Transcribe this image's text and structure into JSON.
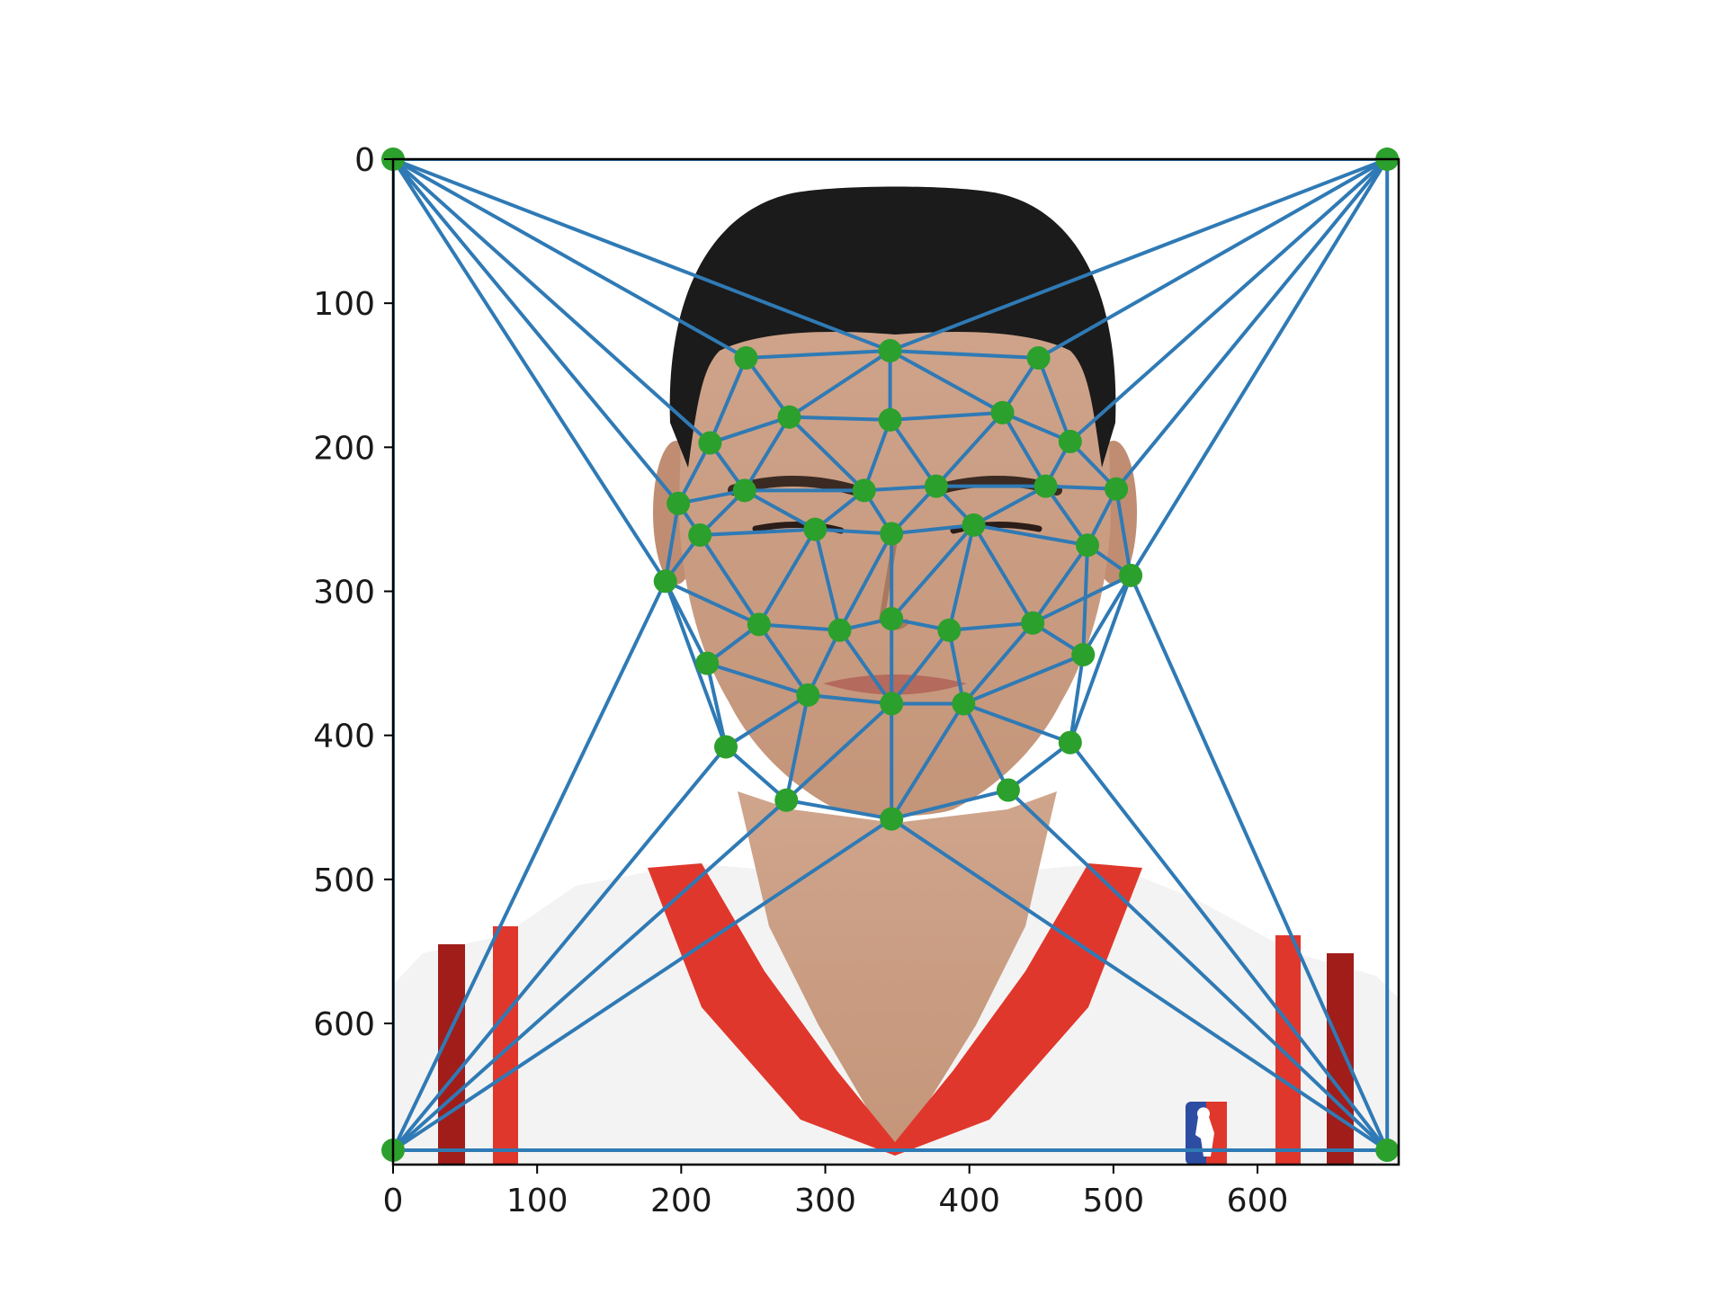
{
  "chart_data": {
    "type": "scatter",
    "subtype": "delaunay-triangulation-over-image",
    "title": "",
    "xlabel": "",
    "ylabel": "",
    "xlim": [
      0,
      698
    ],
    "ylim": [
      698,
      0
    ],
    "y_inverted": true,
    "grid": false,
    "legend": "none",
    "xticks": [
      0,
      100,
      200,
      300,
      400,
      500,
      600
    ],
    "yticks": [
      0,
      100,
      200,
      300,
      400,
      500,
      600
    ],
    "background_image": "portrait photo: face, basketball jersey with red stripes, dark hair",
    "colors": {
      "edges": "#2f7ab5",
      "points": "#2ca02c",
      "hair": "#1b1b1b",
      "skin": "#cda38a",
      "skin_shadow": "#b7876e",
      "jersey": "#f3f3f3",
      "jersey_red": "#e0372c",
      "jersey_dark_red": "#a01d1a",
      "logo_blue": "#2d4da3"
    },
    "points": [
      [
        0,
        0
      ],
      [
        690,
        0
      ],
      [
        0,
        688
      ],
      [
        690,
        688
      ],
      [
        245,
        138
      ],
      [
        345,
        133
      ],
      [
        448,
        138
      ],
      [
        220,
        197
      ],
      [
        275,
        179
      ],
      [
        345,
        181
      ],
      [
        423,
        176
      ],
      [
        470,
        196
      ],
      [
        198,
        239
      ],
      [
        244,
        230
      ],
      [
        327,
        230
      ],
      [
        377,
        227
      ],
      [
        453,
        227
      ],
      [
        502,
        229
      ],
      [
        213,
        261
      ],
      [
        293,
        257
      ],
      [
        346,
        260
      ],
      [
        403,
        254
      ],
      [
        482,
        268
      ],
      [
        189,
        293
      ],
      [
        512,
        289
      ],
      [
        254,
        323
      ],
      [
        310,
        327
      ],
      [
        346,
        319
      ],
      [
        386,
        327
      ],
      [
        444,
        322
      ],
      [
        218,
        350
      ],
      [
        479,
        344
      ],
      [
        288,
        372
      ],
      [
        346,
        378
      ],
      [
        396,
        378
      ],
      [
        231,
        408
      ],
      [
        470,
        405
      ],
      [
        273,
        445
      ],
      [
        427,
        438
      ],
      [
        346,
        458
      ]
    ],
    "triangles": [
      [
        0,
        4,
        5
      ],
      [
        0,
        4,
        7
      ],
      [
        4,
        7,
        8
      ],
      [
        4,
        5,
        8
      ],
      [
        5,
        8,
        9
      ],
      [
        5,
        9,
        10
      ],
      [
        5,
        6,
        10
      ],
      [
        0,
        5,
        1
      ],
      [
        1,
        5,
        6
      ],
      [
        1,
        6,
        11
      ],
      [
        6,
        10,
        11
      ],
      [
        0,
        7,
        12
      ],
      [
        7,
        12,
        13
      ],
      [
        7,
        8,
        13
      ],
      [
        8,
        13,
        14
      ],
      [
        8,
        9,
        14
      ],
      [
        9,
        14,
        15
      ],
      [
        9,
        10,
        15
      ],
      [
        10,
        15,
        16
      ],
      [
        10,
        11,
        16
      ],
      [
        11,
        16,
        17
      ],
      [
        1,
        11,
        17
      ],
      [
        0,
        12,
        23
      ],
      [
        12,
        13,
        18
      ],
      [
        12,
        18,
        23
      ],
      [
        13,
        18,
        19
      ],
      [
        13,
        14,
        19
      ],
      [
        14,
        19,
        20
      ],
      [
        14,
        15,
        20
      ],
      [
        15,
        20,
        21
      ],
      [
        15,
        16,
        21
      ],
      [
        16,
        21,
        22
      ],
      [
        16,
        17,
        22
      ],
      [
        17,
        22,
        24
      ],
      [
        1,
        17,
        24
      ],
      [
        18,
        19,
        25
      ],
      [
        18,
        23,
        25
      ],
      [
        19,
        25,
        26
      ],
      [
        19,
        20,
        26
      ],
      [
        20,
        26,
        27
      ],
      [
        20,
        21,
        27
      ],
      [
        21,
        27,
        28
      ],
      [
        21,
        28,
        29
      ],
      [
        21,
        22,
        29
      ],
      [
        22,
        24,
        29
      ],
      [
        23,
        25,
        30
      ],
      [
        25,
        30,
        32
      ],
      [
        25,
        26,
        32
      ],
      [
        26,
        27,
        33
      ],
      [
        26,
        32,
        33
      ],
      [
        27,
        28,
        33
      ],
      [
        28,
        33,
        34
      ],
      [
        28,
        29,
        34
      ],
      [
        29,
        31,
        34
      ],
      [
        22,
        29,
        31
      ],
      [
        22,
        24,
        31
      ],
      [
        24,
        31,
        36
      ],
      [
        31,
        34,
        36
      ],
      [
        30,
        32,
        35
      ],
      [
        23,
        30,
        35
      ],
      [
        0,
        23,
        2
      ],
      [
        2,
        23,
        35
      ],
      [
        32,
        35,
        37
      ],
      [
        32,
        33,
        37
      ],
      [
        33,
        37,
        39
      ],
      [
        33,
        34,
        39
      ],
      [
        34,
        38,
        39
      ],
      [
        34,
        36,
        38
      ],
      [
        3,
        36,
        38
      ],
      [
        1,
        24,
        3
      ],
      [
        3,
        24,
        36
      ],
      [
        2,
        35,
        37
      ],
      [
        2,
        37,
        39
      ],
      [
        2,
        39,
        3
      ],
      [
        3,
        38,
        39
      ]
    ]
  }
}
